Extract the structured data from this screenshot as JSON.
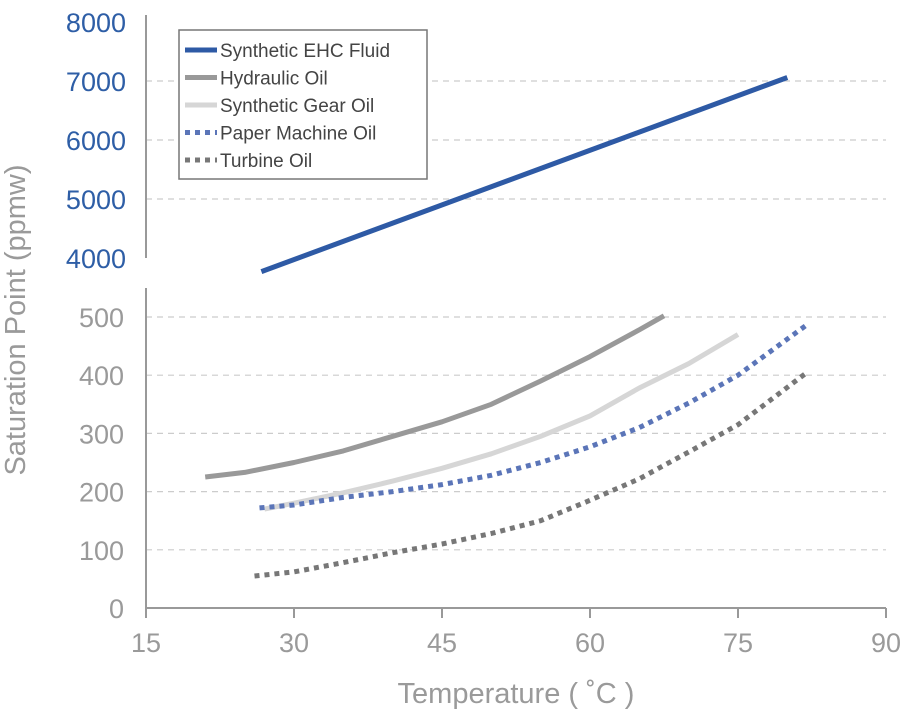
{
  "chart_data": {
    "type": "line",
    "xlabel": "Temperature ( ˚C )",
    "ylabel": "Saturation Point (ppmw)",
    "xlim": [
      15,
      90
    ],
    "x_ticks": [
      "15",
      "30",
      "45",
      "60",
      "75",
      "90"
    ],
    "y_axis_break": true,
    "y_upper_ticks": [
      "4000",
      "5000",
      "6000",
      "7000",
      "8000"
    ],
    "y_lower_ticks": [
      "0",
      "100",
      "200",
      "300",
      "400",
      "500"
    ],
    "ylim_upper": [
      4000,
      8000
    ],
    "ylim_lower": [
      0,
      500
    ],
    "grid": "horizontal dashed",
    "legend_position": "top-left",
    "colors": {
      "upper_axis_text": "#2e5ea6",
      "lower_axis_text": "#9a9a9a",
      "axis_line": "#999999",
      "grid": "#cccccc"
    },
    "series": [
      {
        "name": "Synthetic EHC Fluid",
        "color": "#2e5aa5",
        "dash": "solid",
        "segment": "upper",
        "x": [
          26.7,
          80
        ],
        "y": [
          3770,
          7060
        ]
      },
      {
        "name": "Hydraulic Oil",
        "color": "#999999",
        "dash": "solid",
        "segment": "lower",
        "x": [
          21,
          25,
          30,
          35,
          40,
          45,
          50,
          55,
          60,
          65,
          67.5
        ],
        "y": [
          225,
          233,
          250,
          270,
          295,
          320,
          350,
          390,
          432,
          478,
          502
        ]
      },
      {
        "name": "Synthetic Gear Oil",
        "color": "#d6d6d6",
        "dash": "solid",
        "segment": "lower",
        "x": [
          27,
          30,
          35,
          40,
          45,
          50,
          55,
          60,
          65,
          70,
          75
        ],
        "y": [
          170,
          180,
          198,
          218,
          240,
          265,
          295,
          330,
          378,
          420,
          470
        ]
      },
      {
        "name": "Paper Machine Oil",
        "color": "#5b75b8",
        "dash": "dotted",
        "segment": "lower",
        "x": [
          26.5,
          30,
          35,
          40,
          45,
          50,
          55,
          60,
          65,
          70,
          75,
          82
        ],
        "y": [
          172,
          177,
          190,
          200,
          212,
          228,
          250,
          277,
          310,
          352,
          400,
          487
        ]
      },
      {
        "name": "Turbine Oil",
        "color": "#777777",
        "dash": "dotted",
        "segment": "lower",
        "x": [
          26,
          30,
          35,
          40,
          45,
          50,
          55,
          60,
          65,
          70,
          75,
          82
        ],
        "y": [
          55,
          62,
          78,
          95,
          110,
          128,
          150,
          185,
          222,
          268,
          315,
          405
        ]
      }
    ]
  }
}
